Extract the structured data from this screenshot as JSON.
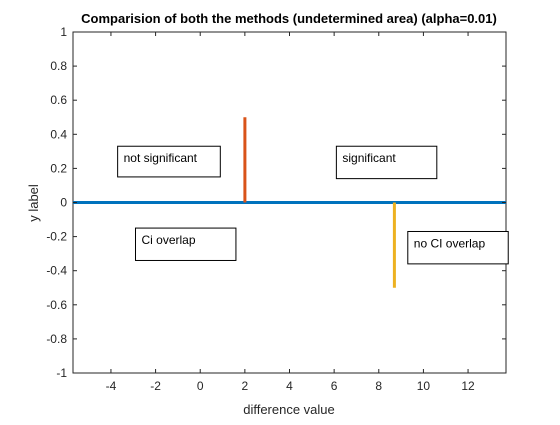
{
  "chart_data": {
    "type": "line",
    "title": "Comparision of both the methods (undetermined area) (alpha=0.01)",
    "xlabel": "difference value",
    "ylabel": "y label",
    "xlim": [
      -5.7,
      13.7
    ],
    "ylim": [
      -1,
      1
    ],
    "xticks": [
      -4,
      -2,
      0,
      2,
      4,
      6,
      8,
      10,
      12
    ],
    "yticks": [
      1,
      0.8,
      0.6,
      0.4,
      0.2,
      0,
      -0.2,
      -0.4,
      -0.6,
      -0.8,
      -1
    ],
    "xtick_labels": [
      "-4",
      "-2",
      "0",
      "2",
      "4",
      "6",
      "8",
      "10",
      "12"
    ],
    "ytick_labels": [
      "1",
      "0.8",
      "0.6",
      "0.4",
      "0.2",
      "0",
      "-0.2",
      "-0.4",
      "-0.6",
      "-0.8",
      "-1"
    ],
    "grid": false,
    "series": [
      {
        "x": [
          -5.7,
          13.7
        ],
        "y": [
          0,
          0
        ],
        "color": "#0072bd"
      },
      {
        "x": [
          2,
          2
        ],
        "y": [
          0,
          0.5
        ],
        "color": "#d95319"
      },
      {
        "x": [
          8.7,
          8.7
        ],
        "y": [
          0,
          -0.5
        ],
        "color": "#edb120"
      }
    ],
    "annotations": [
      {
        "text": "not significant",
        "x1": -3.7,
        "x2": 0.9,
        "y1": 0.33,
        "y2": 0.15
      },
      {
        "text": "significant",
        "x1": 6.1,
        "x2": 10.6,
        "y1": 0.33,
        "y2": 0.14
      },
      {
        "text": "Ci overlap",
        "x1": -2.9,
        "x2": 1.6,
        "y1": -0.15,
        "y2": -0.34
      },
      {
        "text": "no CI overlap",
        "x1": 9.3,
        "x2": 13.8,
        "y1": -0.17,
        "y2": -0.36
      }
    ]
  }
}
